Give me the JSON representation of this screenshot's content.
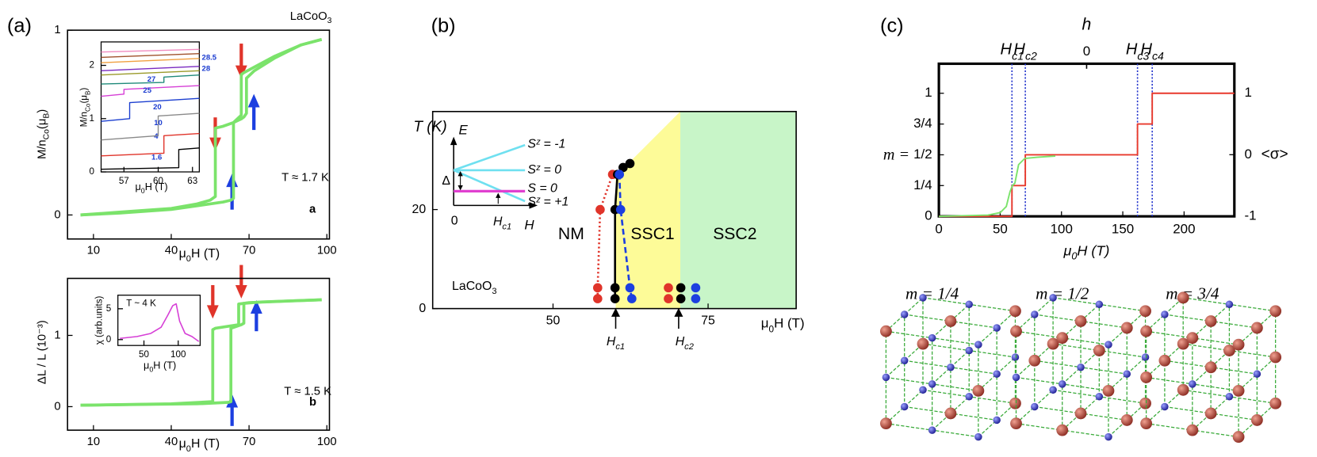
{
  "panel_labels": [
    "(a)",
    "(b)",
    "(c)"
  ],
  "chart_data": [
    {
      "type": "line",
      "xlabel": [
        "μ",
        "0",
        "H (T)"
      ],
      "ylabel": [
        "M/n",
        "Co",
        "(μ",
        "B",
        ")"
      ],
      "xlim": [
        0,
        101
      ],
      "ylim": [
        -0.13,
        1.0
      ],
      "xticks": [
        10,
        40,
        70,
        100
      ],
      "yticks": [
        0,
        1
      ],
      "annotations": [
        [
          "LaCoO",
          "3"
        ],
        "T ≈ 1.7 K",
        "a"
      ],
      "series": [
        {
          "color": "#7be36b",
          "x": [
            5,
            20,
            40,
            50,
            55,
            60,
            63,
            64,
            64,
            67,
            68,
            69,
            69,
            72,
            80,
            90,
            98
          ],
          "values": [
            0,
            0.01,
            0.03,
            0.05,
            0.06,
            0.07,
            0.08,
            0.09,
            0.5,
            0.52,
            0.53,
            0.55,
            0.74,
            0.78,
            0.85,
            0.92,
            0.95
          ]
        },
        {
          "color": "#7be36b",
          "x": [
            98,
            90,
            80,
            72,
            68,
            67,
            67,
            64,
            60,
            57,
            57,
            55,
            50,
            40,
            20,
            5
          ],
          "values": [
            0.95,
            0.92,
            0.86,
            0.8,
            0.77,
            0.76,
            0.54,
            0.5,
            0.48,
            0.47,
            0.1,
            0.08,
            0.06,
            0.035,
            0.015,
            0.0
          ]
        }
      ]
    },
    {
      "type": "line",
      "xlabel": [
        "μ",
        "0",
        "H (T)"
      ],
      "ylabel": [
        "M/n",
        "Co",
        "(μ",
        "B",
        ")"
      ],
      "xlim": [
        55,
        63.6
      ],
      "ylim": [
        0,
        2.44
      ],
      "xticks": [
        57,
        60,
        63
      ],
      "yticks": [
        0,
        1,
        2
      ],
      "series": [
        {
          "name": "1.6",
          "color": "#000000",
          "x": [
            55,
            61.8,
            61.8,
            63.6
          ],
          "values": [
            0.05,
            0.08,
            0.42,
            0.45
          ]
        },
        {
          "name": "4",
          "color": "#e0342a",
          "x": [
            55,
            60.5,
            60.5,
            63.6
          ],
          "values": [
            0.3,
            0.35,
            0.68,
            0.72
          ]
        },
        {
          "name": "10",
          "color": "#8a8a8a",
          "x": [
            55,
            60,
            60,
            63.6
          ],
          "values": [
            0.6,
            0.68,
            1.05,
            1.1
          ]
        },
        {
          "name": "20",
          "color": "#1c3fd0",
          "x": [
            55,
            57.5,
            57.5,
            63.6
          ],
          "values": [
            0.95,
            1.0,
            1.3,
            1.38
          ]
        },
        {
          "name": "25",
          "color": "#d63fd6",
          "x": [
            55,
            57,
            57,
            63.6
          ],
          "values": [
            1.42,
            1.46,
            1.55,
            1.62
          ]
        },
        {
          "name": "27",
          "color": "#1f8a7a",
          "x": [
            55,
            60.5,
            60.5,
            63.6
          ],
          "values": [
            1.65,
            1.68,
            1.78,
            1.82
          ]
        },
        {
          "color": "#9a9a2a",
          "x": [
            55,
            63.6
          ],
          "values": [
            1.82,
            1.9
          ]
        },
        {
          "name": "28",
          "color": "#7a2ac0",
          "x": [
            55,
            63.6
          ],
          "values": [
            1.9,
            1.98
          ]
        },
        {
          "name": "28.5",
          "color": "#f0a040",
          "x": [
            55,
            63.6
          ],
          "values": [
            2.05,
            2.13
          ]
        },
        {
          "color": "#a0522d",
          "x": [
            55,
            63.6
          ],
          "values": [
            2.15,
            2.22
          ]
        },
        {
          "color": "#f08cc0",
          "x": [
            55,
            63.6
          ],
          "values": [
            2.25,
            2.3
          ]
        }
      ]
    },
    {
      "type": "line",
      "xlabel": [
        "μ",
        "0",
        "H (T)"
      ],
      "ylabel": "ΔL / L (10⁻³)",
      "xlim": [
        0,
        101
      ],
      "ylim": [
        -0.33,
        1.8
      ],
      "xticks": [
        10,
        40,
        70,
        100
      ],
      "yticks": [
        0,
        1
      ],
      "annotations": [
        "T ≈ 1.5 K",
        "b"
      ],
      "series": [
        {
          "color": "#7be36b",
          "x": [
            5,
            50,
            62,
            63,
            63,
            67,
            68,
            68,
            75,
            98
          ],
          "values": [
            0.02,
            0.04,
            0.06,
            0.07,
            1.1,
            1.15,
            1.17,
            1.45,
            1.47,
            1.5
          ]
        },
        {
          "color": "#7be36b",
          "x": [
            98,
            70,
            66,
            66,
            57,
            56,
            56,
            40,
            5
          ],
          "values": [
            1.5,
            1.46,
            1.44,
            1.15,
            1.1,
            1.08,
            0.07,
            0.04,
            0.02
          ]
        }
      ]
    },
    {
      "type": "line",
      "xlabel": [
        "μ",
        "0",
        "H (T)"
      ],
      "ylabel": "χ (arb.units)",
      "xlim": [
        12,
        132
      ],
      "ylim": [
        -0.95,
        7.2
      ],
      "xticks": [
        50,
        100
      ],
      "yticks": [
        0,
        5
      ],
      "annotations": [
        "T ~ 4 K"
      ],
      "series": [
        {
          "color": "#d63fd6",
          "x": [
            15,
            40,
            60,
            75,
            85,
            92,
            97,
            102,
            110,
            120,
            130
          ],
          "values": [
            0.2,
            0.5,
            1,
            2,
            4,
            5.5,
            5.8,
            3,
            1,
            0.5,
            -0.3
          ]
        }
      ]
    },
    {
      "type": "line",
      "xlabel": [
        "μ",
        "0",
        "H (T)"
      ],
      "ylabel": "T (K)",
      "xlim": [
        30.6,
        89.2
      ],
      "ylim": [
        0,
        39.8
      ],
      "xticks": [
        50,
        75
      ],
      "yticks": [
        0,
        20
      ],
      "annotations": [
        "NM",
        "SSC1",
        "SSC2",
        [
          "LaCoO",
          "3"
        ],
        [
          "H",
          "c1"
        ],
        [
          "H",
          "c2"
        ]
      ],
      "series": [
        {
          "color": "#e0342a",
          "linestyle": "dotted",
          "marker": true,
          "x": [
            57.2,
            57.2,
            57.6,
            59.6
          ],
          "values": [
            2,
            4.2,
            20,
            27.1
          ]
        },
        {
          "color": "#000000",
          "linestyle": "solid",
          "marker": true,
          "x": [
            60,
            60,
            60,
            60.4,
            61.3,
            62.4
          ],
          "values": [
            2,
            4.2,
            20,
            27.1,
            28.5,
            29.3
          ]
        },
        {
          "color": "#1c3fe0",
          "linestyle": "dashed",
          "marker": true,
          "x": [
            62.7,
            62.4,
            60.9,
            60.7
          ],
          "values": [
            2,
            4.2,
            20,
            27.1
          ]
        },
        {
          "color": "#e0342a",
          "linestyle": "none",
          "marker": true,
          "x": [
            68.6,
            68.6
          ],
          "values": [
            2,
            4.2
          ]
        },
        {
          "color": "#000000",
          "linestyle": "none",
          "marker": true,
          "x": [
            70.6,
            70.6
          ],
          "values": [
            2,
            4.2
          ]
        },
        {
          "color": "#1c3fe0",
          "linestyle": "none",
          "marker": true,
          "x": [
            73,
            73
          ],
          "values": [
            2,
            4.2
          ]
        }
      ]
    },
    {
      "type": "line",
      "xlabel": [
        "μ",
        "0",
        "H (T)"
      ],
      "ylabel": "m =",
      "y2label": "<σ>",
      "x2label": "h",
      "xlim": [
        0,
        241
      ],
      "ylim": [
        0,
        1.24
      ],
      "y2lim": [
        -1,
        1.476
      ],
      "x2lim": [
        -1,
        1
      ],
      "xticks": [
        0,
        50,
        100,
        150,
        200
      ],
      "yticks": [
        0,
        {
          "value": 0.25,
          "label": "1/4"
        },
        {
          "value": 0.5,
          "label": "1/2"
        },
        {
          "value": 0.75,
          "label": "3/4"
        },
        1
      ],
      "y2ticks": [
        -1,
        0,
        1
      ],
      "x2ticks": [
        0
      ],
      "vlines": [
        {
          "value": 59.6,
          "label": [
            "H",
            "c1"
          ]
        },
        {
          "value": 70.5,
          "label": [
            "H",
            "c2"
          ]
        },
        {
          "value": 162,
          "label": [
            "H",
            "c3"
          ]
        },
        {
          "value": 174,
          "label": [
            "H",
            "c4"
          ]
        }
      ],
      "vline_color": "#2233cc",
      "series": [
        {
          "color": "#e8392c",
          "x": [
            0,
            59.6,
            59.6,
            70.5,
            70.5,
            162,
            162,
            174,
            174,
            241
          ],
          "values": [
            0,
            0,
            0.25,
            0.25,
            0.5,
            0.5,
            0.75,
            0.75,
            1,
            1
          ]
        },
        {
          "color": "#7be36b",
          "x": [
            0,
            40,
            50,
            55,
            58,
            60,
            62,
            65,
            70,
            80,
            95
          ],
          "values": [
            0,
            0.01,
            0.03,
            0.08,
            0.2,
            0.25,
            0.27,
            0.42,
            0.47,
            0.48,
            0.49
          ]
        }
      ]
    }
  ],
  "energy_diagram": {
    "E": "E",
    "zero": "0",
    "H": "H",
    "Hc1": [
      "H",
      "c1"
    ],
    "delta": "Δ",
    "levels": [
      "Sᶻ = -1",
      "Sᶻ = 0",
      "S = 0",
      "Sᶻ = +1"
    ]
  },
  "lattice": {
    "titles": [
      "m = 1/4",
      "m = 1/2",
      "m = 3/4"
    ]
  }
}
